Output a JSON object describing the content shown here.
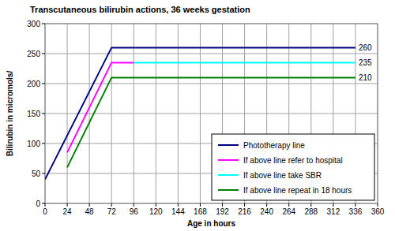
{
  "chart_data": {
    "type": "line",
    "title": "Transcutaneous bilirubin actions, 36 weeks gestation",
    "x_label": "Age in hours",
    "y_label": "Bilirubin in micromols/",
    "xlim": [
      0,
      360
    ],
    "xticks": [
      0,
      24,
      48,
      72,
      96,
      120,
      144,
      168,
      192,
      216,
      240,
      264,
      288,
      312,
      336,
      360
    ],
    "ylim": [
      0,
      300
    ],
    "yticks": [
      0,
      50,
      100,
      150,
      200,
      250,
      300
    ],
    "grid": true,
    "legend": "lower right",
    "series": [
      {
        "name": "Phototherapy line",
        "color": "#000080",
        "x": [
          0,
          72,
          336
        ],
        "values": [
          40,
          260,
          260
        ]
      },
      {
        "name": "If above line refer to hospital",
        "color": "#ff00ff",
        "x": [
          24,
          72,
          96
        ],
        "values": [
          85,
          235,
          235
        ]
      },
      {
        "name": "If above line take SBR",
        "color": "#00ffff",
        "x": [
          96,
          336
        ],
        "values": [
          235,
          235
        ]
      },
      {
        "name": "If above line repeat in 18 hours",
        "color": "#008000",
        "x": [
          24,
          72,
          336
        ],
        "values": [
          60,
          210,
          210
        ]
      }
    ],
    "annotations": [
      {
        "text": "260",
        "x": 336,
        "y": 260
      },
      {
        "text": "235",
        "x": 336,
        "y": 235
      },
      {
        "text": "210",
        "x": 336,
        "y": 210
      }
    ]
  }
}
